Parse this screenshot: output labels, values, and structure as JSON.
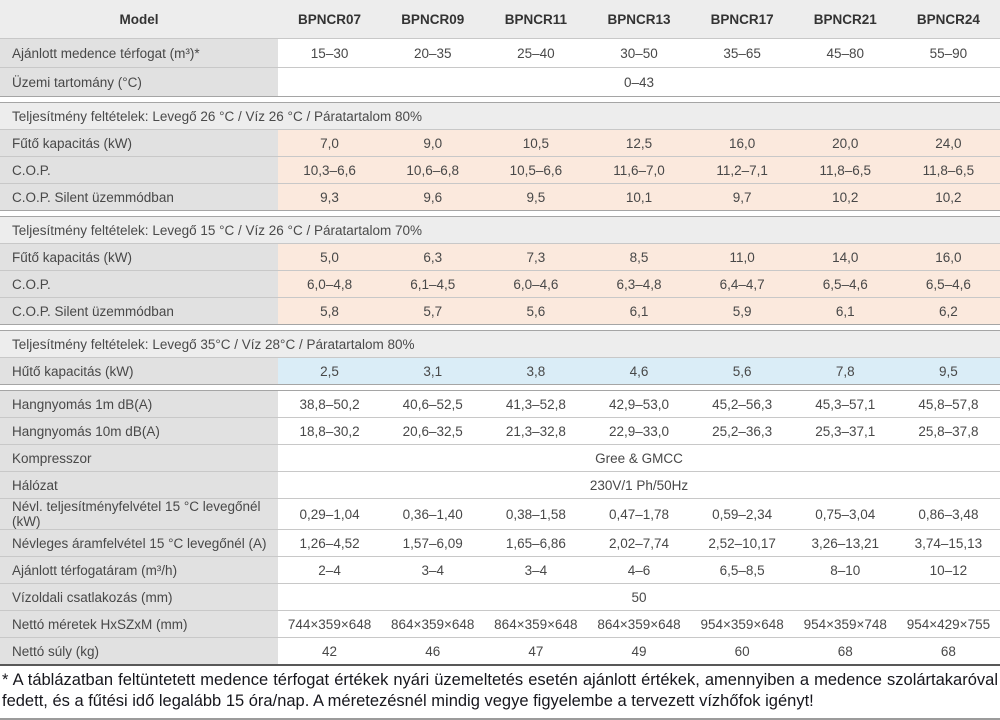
{
  "colors": {
    "headerBg": "#ededed",
    "sectionBg": "#ededed",
    "labelBg": "#e1e1e1",
    "divider": "#c8c8c8",
    "groupBorder": "#a5a5a5",
    "heavyLine": "#585858",
    "peach": "#fbe9dd",
    "blue": "#daedf7"
  },
  "table": {
    "header": {
      "model_label": "Model",
      "columns": [
        "BPNCR07",
        "BPNCR09",
        "BPNCR11",
        "BPNCR13",
        "BPNCR17",
        "BPNCR21",
        "BPNCR24"
      ]
    },
    "groups": [
      {
        "section": null,
        "with_header": true,
        "tall_rows": true,
        "rows": [
          {
            "label": "Ajánlott medence térfogat (m³)*",
            "tint": "none",
            "values": [
              "15–30",
              "20–35",
              "25–40",
              "30–50",
              "35–65",
              "45–80",
              "55–90"
            ]
          },
          {
            "label": "Üzemi tartomány (°C)",
            "tint": "none",
            "merged": "0–43"
          }
        ]
      },
      {
        "section": "Teljesítmény feltételek: Levegő 26 °C / Víz 26 °C / Páratartalom 80%",
        "rows": [
          {
            "label": "Fűtő kapacitás (kW)",
            "tint": "peach",
            "values": [
              "7,0",
              "9,0",
              "10,5",
              "12,5",
              "16,0",
              "20,0",
              "24,0"
            ]
          },
          {
            "label": "C.O.P.",
            "tint": "peach",
            "values": [
              "10,3–6,6",
              "10,6–6,8",
              "10,5–6,6",
              "11,6–7,0",
              "11,2–7,1",
              "11,8–6,5",
              "11,8–6,5"
            ]
          },
          {
            "label": "C.O.P. Silent üzemmódban",
            "tint": "peach",
            "values": [
              "9,3",
              "9,6",
              "9,5",
              "10,1",
              "9,7",
              "10,2",
              "10,2"
            ]
          }
        ]
      },
      {
        "section": "Teljesítmény feltételek: Levegő 15 °C / Víz 26 °C / Páratartalom 70%",
        "rows": [
          {
            "label": "Fűtő kapacitás (kW)",
            "tint": "peach",
            "values": [
              "5,0",
              "6,3",
              "7,3",
              "8,5",
              "11,0",
              "14,0",
              "16,0"
            ]
          },
          {
            "label": "C.O.P.",
            "tint": "peach",
            "values": [
              "6,0–4,8",
              "6,1–4,5",
              "6,0–4,6",
              "6,3–4,8",
              "6,4–4,7",
              "6,5–4,6",
              "6,5–4,6"
            ]
          },
          {
            "label": "C.O.P. Silent üzemmódban",
            "tint": "peach",
            "values": [
              "5,8",
              "5,7",
              "5,6",
              "6,1",
              "5,9",
              "6,1",
              "6,2"
            ]
          }
        ]
      },
      {
        "section": "Teljesítmény feltételek: Levegő 35°C / Víz 28°C / Páratartalom 80%",
        "rows": [
          {
            "label": "Hűtő kapacitás (kW)",
            "tint": "blue",
            "values": [
              "2,5",
              "3,1",
              "3,8",
              "4,6",
              "5,6",
              "7,8",
              "9,5"
            ]
          }
        ]
      },
      {
        "section": null,
        "rows": [
          {
            "label": "Hangnyomás 1m dB(A)",
            "tint": "none",
            "values": [
              "38,8–50,2",
              "40,6–52,5",
              "41,3–52,8",
              "42,9–53,0",
              "45,2–56,3",
              "45,3–57,1",
              "45,8–57,8"
            ]
          },
          {
            "label": "Hangnyomás 10m dB(A)",
            "tint": "none",
            "values": [
              "18,8–30,2",
              "20,6–32,5",
              "21,3–32,8",
              "22,9–33,0",
              "25,2–36,3",
              "25,3–37,1",
              "25,8–37,8"
            ]
          },
          {
            "label": "Kompresszor",
            "tint": "none",
            "merged": "Gree & GMCC"
          },
          {
            "label": "Hálózat",
            "tint": "none",
            "merged": "230V/1 Ph/50Hz"
          },
          {
            "label": "Névl. teljesítményfelvétel 15 °C levegőnél (kW)",
            "tint": "none",
            "values": [
              "0,29–1,04",
              "0,36–1,40",
              "0,38–1,58",
              "0,47–1,78",
              "0,59–2,34",
              "0,75–3,04",
              "0,86–3,48"
            ]
          },
          {
            "label": "Névleges áramfelvétel 15 °C levegőnél (A)",
            "tint": "none",
            "values": [
              "1,26–4,52",
              "1,57–6,09",
              "1,65–6,86",
              "2,02–7,74",
              "2,52–10,17",
              "3,26–13,21",
              "3,74–15,13"
            ]
          },
          {
            "label": "Ajánlott térfogatáram (m³/h)",
            "tint": "none",
            "values": [
              "2–4",
              "3–4",
              "3–4",
              "4–6",
              "6,5–8,5",
              "8–10",
              "10–12"
            ]
          },
          {
            "label": "Vízoldali csatlakozás (mm)",
            "tint": "none",
            "merged": "50"
          },
          {
            "label": "Nettó méretek HxSZxM (mm)",
            "tint": "none",
            "values": [
              "744×359×648",
              "864×359×648",
              "864×359×648",
              "864×359×648",
              "954×359×648",
              "954×359×748",
              "954×429×755"
            ]
          },
          {
            "label": "Nettó súly (kg)",
            "tint": "none",
            "values": [
              "42",
              "46",
              "47",
              "49",
              "60",
              "68",
              "68"
            ]
          }
        ]
      }
    ]
  },
  "footnote": "* A táblázatban feltüntetett medence térfogat értékek nyári üzemeltetés esetén ajánlott értékek, amennyiben a medence szolártakaróval fedett, és a fűtési idő legalább 15 óra/nap. A méretezésnél mindig vegye figyelembe a tervezett vízhőfok igényt!"
}
